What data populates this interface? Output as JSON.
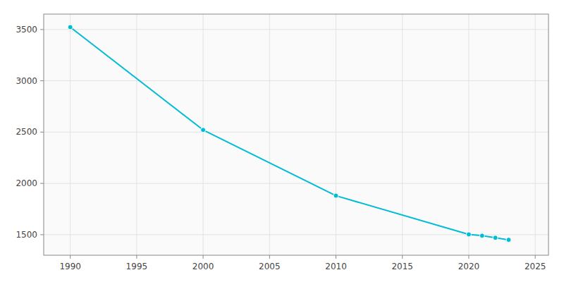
{
  "chart_data": {
    "type": "line",
    "x": [
      1990,
      2000,
      2010,
      2020,
      2021,
      2022,
      2023
    ],
    "values": [
      3523,
      2521,
      1880,
      1503,
      1490,
      1470,
      1450
    ],
    "color": "#00bcd4",
    "marker": "circle",
    "xlim": [
      1988,
      2026
    ],
    "ylim": [
      1300,
      3650
    ],
    "xticks": [
      1990,
      1995,
      2000,
      2005,
      2010,
      2015,
      2020,
      2025
    ],
    "yticks": [
      1500,
      2000,
      2500,
      3000,
      3500
    ],
    "grid": true
  }
}
